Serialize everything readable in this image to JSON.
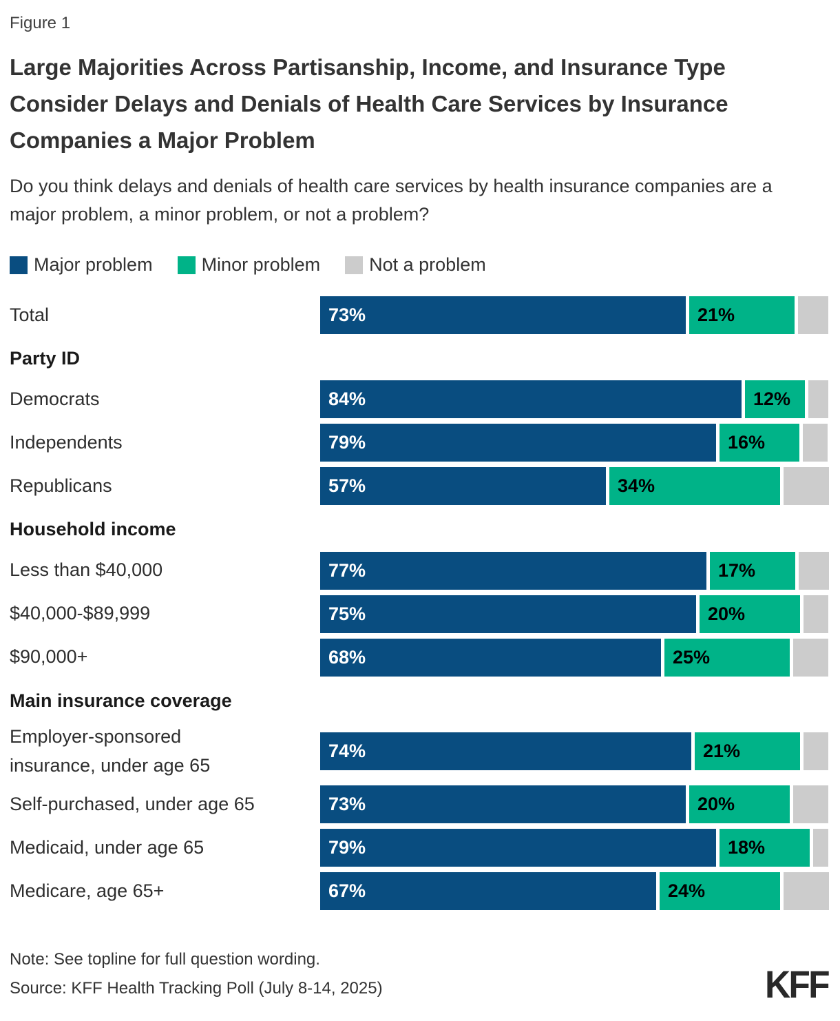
{
  "figure": {
    "label": "Figure 1",
    "title": "Large Majorities Across Partisanship, Income, and Insurance Type Consider Delays and Denials of Health Care Services by Insurance Companies a Major Problem",
    "subtitle": "Do you think delays and denials of health care services by health insurance companies are a major problem, a minor problem, or not a problem?"
  },
  "footer": {
    "note": "Note: See topline for full question wording.",
    "source": "Source: KFF Health Tracking Poll (July 8-14, 2025)",
    "logo": "KFF"
  },
  "chart_data": {
    "type": "bar",
    "orientation": "horizontal",
    "stacked": true,
    "unit": "%",
    "x_range": [
      0,
      100
    ],
    "grid": false,
    "legend_position": "top",
    "colors": {
      "major_problem": "#094d80",
      "minor_problem": "#00b388",
      "not_a_problem": "#cccccc"
    },
    "value_label_colors": {
      "major_problem": "#ffffff",
      "minor_problem": "#000000"
    },
    "legend": [
      {
        "key": "major_problem",
        "label": "Major problem"
      },
      {
        "key": "minor_problem",
        "label": "Minor problem"
      },
      {
        "key": "not_a_problem",
        "label": "Not a problem"
      }
    ],
    "series_keys": [
      "major_problem",
      "minor_problem",
      "not_a_problem"
    ],
    "value_labels_shown_for": [
      "major_problem",
      "minor_problem"
    ],
    "groups": [
      {
        "header": null,
        "rows": [
          {
            "label": "Total",
            "major_problem": 73,
            "minor_problem": 21,
            "not_a_problem": 6
          }
        ]
      },
      {
        "header": "Party ID",
        "rows": [
          {
            "label": "Democrats",
            "major_problem": 84,
            "minor_problem": 12,
            "not_a_problem": 4
          },
          {
            "label": "Independents",
            "major_problem": 79,
            "minor_problem": 16,
            "not_a_problem": 5
          },
          {
            "label": "Republicans",
            "major_problem": 57,
            "minor_problem": 34,
            "not_a_problem": 9
          }
        ]
      },
      {
        "header": "Household income",
        "rows": [
          {
            "label": "Less than $40,000",
            "major_problem": 77,
            "minor_problem": 17,
            "not_a_problem": 6
          },
          {
            "label": "$40,000-$89,999",
            "major_problem": 75,
            "minor_problem": 20,
            "not_a_problem": 5
          },
          {
            "label": "$90,000+",
            "major_problem": 68,
            "minor_problem": 25,
            "not_a_problem": 7
          }
        ]
      },
      {
        "header": "Main insurance coverage",
        "rows": [
          {
            "label": "Employer-sponsored\ninsurance, under age 65",
            "major_problem": 74,
            "minor_problem": 21,
            "not_a_problem": 5
          },
          {
            "label": "Self-purchased, under age 65",
            "major_problem": 73,
            "minor_problem": 20,
            "not_a_problem": 7
          },
          {
            "label": "Medicaid, under age 65",
            "major_problem": 79,
            "minor_problem": 18,
            "not_a_problem": 3
          },
          {
            "label": "Medicare, age 65+",
            "major_problem": 67,
            "minor_problem": 24,
            "not_a_problem": 9
          }
        ]
      }
    ]
  }
}
